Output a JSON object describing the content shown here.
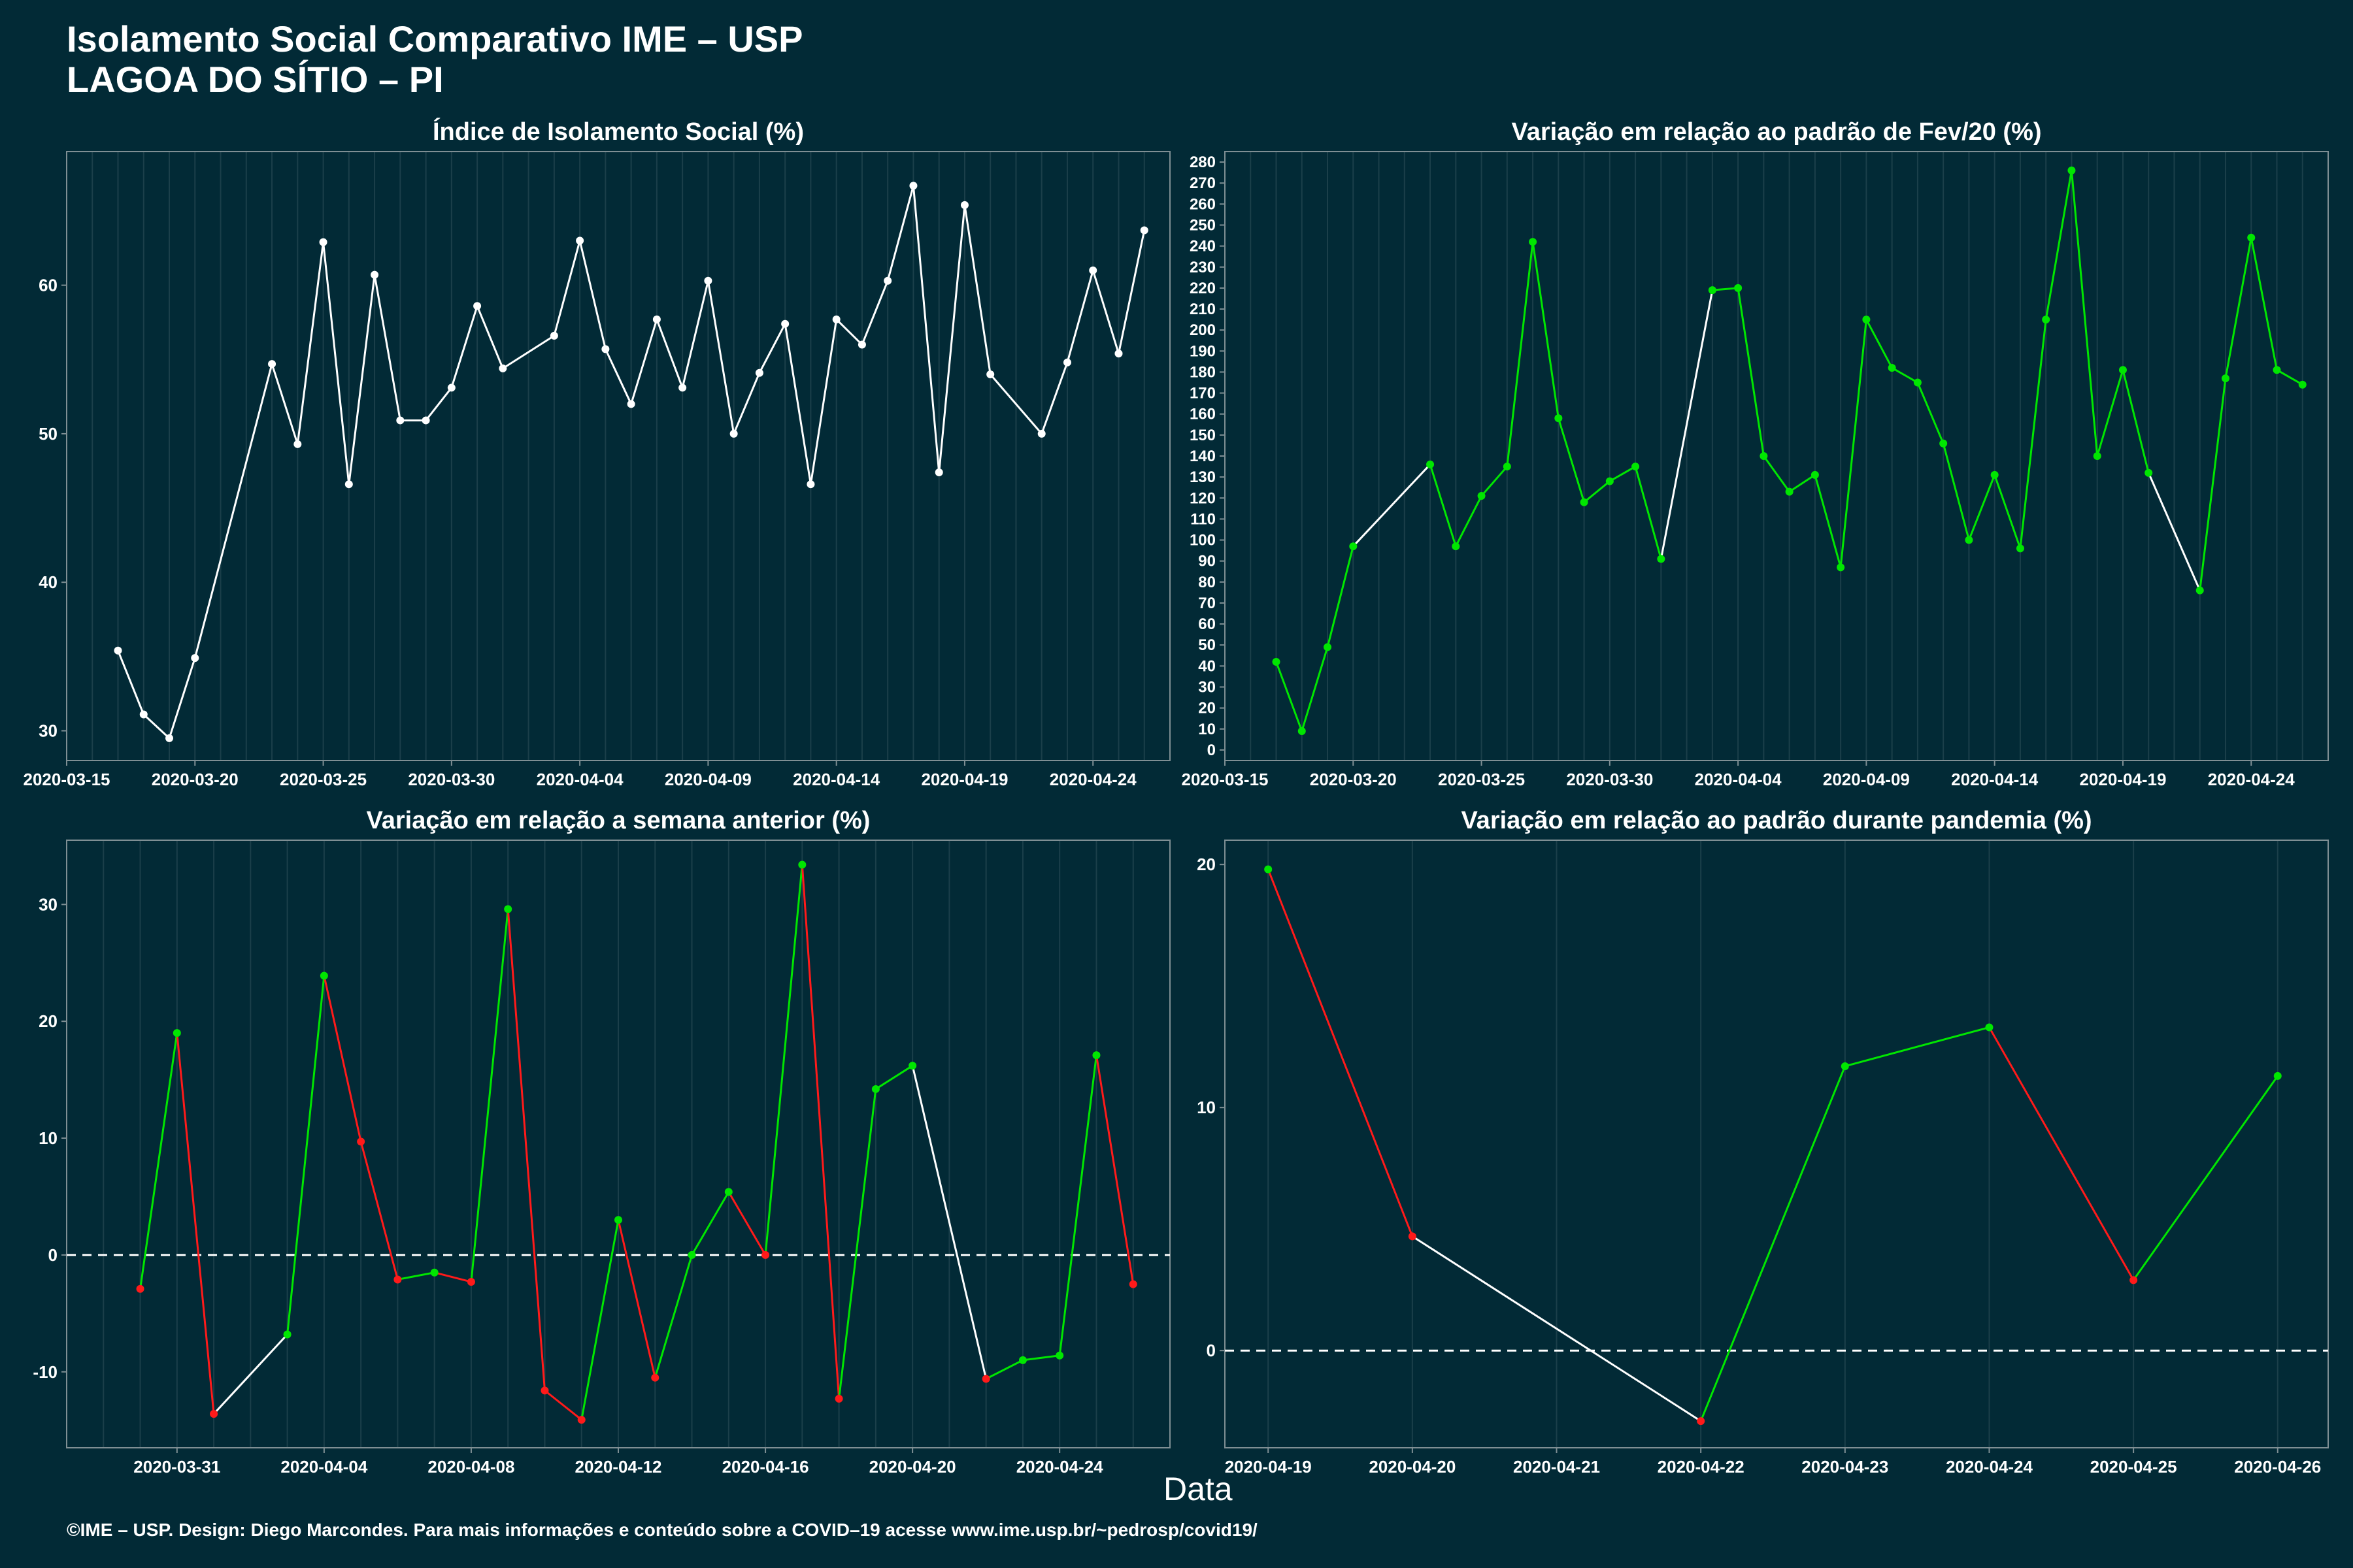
{
  "header": {
    "title_line1": "Isolamento Social Comparativo IME – USP",
    "title_line2": "LAGOA DO SÍTIO – PI"
  },
  "xaxis_label": "Data",
  "footer": "©IME – USP. Design: Diego Marcondes. Para mais informações e conteúdo sobre a COVID–19 acesse www.ime.usp.br/~pedrosp/covid19/",
  "colors": {
    "background": "#022a36",
    "line_default": "#ffffff",
    "positive": "#00e600",
    "negative": "#ff1a1a",
    "grid": "#1b3f4a"
  },
  "chart_data": [
    {
      "type": "line",
      "title": "Índice de Isolamento Social (%)",
      "series_color_rule": "single white",
      "x": [
        "2020-03-17",
        "2020-03-18",
        "2020-03-19",
        "2020-03-20",
        "2020-03-23",
        "2020-03-24",
        "2020-03-25",
        "2020-03-26",
        "2020-03-27",
        "2020-03-28",
        "2020-03-29",
        "2020-03-30",
        "2020-03-31",
        "2020-04-01",
        "2020-04-03",
        "2020-04-04",
        "2020-04-05",
        "2020-04-06",
        "2020-04-07",
        "2020-04-08",
        "2020-04-09",
        "2020-04-10",
        "2020-04-11",
        "2020-04-12",
        "2020-04-13",
        "2020-04-14",
        "2020-04-15",
        "2020-04-16",
        "2020-04-17",
        "2020-04-18",
        "2020-04-19",
        "2020-04-20",
        "2020-04-22",
        "2020-04-23",
        "2020-04-24",
        "2020-04-25",
        "2020-04-26"
      ],
      "y": [
        35.4,
        31.1,
        29.5,
        34.9,
        54.7,
        49.3,
        62.9,
        46.6,
        60.7,
        50.9,
        50.9,
        53.1,
        58.6,
        54.4,
        56.6,
        63.0,
        55.7,
        52.0,
        57.7,
        53.1,
        60.3,
        50.0,
        54.1,
        57.4,
        46.6,
        57.7,
        56.0,
        60.3,
        66.7,
        47.4,
        65.4,
        54.0,
        50.0,
        54.8,
        61.0,
        55.4,
        63.7
      ],
      "xlim": [
        "2020-03-15",
        "2020-04-27"
      ],
      "ylim": [
        28,
        69
      ],
      "xticks": [
        "2020-03-15",
        "2020-03-20",
        "2020-03-25",
        "2020-03-30",
        "2020-04-04",
        "2020-04-09",
        "2020-04-14",
        "2020-04-19",
        "2020-04-24"
      ],
      "yticks": [
        30,
        40,
        50,
        60
      ],
      "zero_line": false
    },
    {
      "type": "line",
      "title": "Variação em relação ao padrão de Fev/20 (%)",
      "series_color_rule": "green when consecutive days, white across gaps",
      "x": [
        "2020-03-17",
        "2020-03-18",
        "2020-03-19",
        "2020-03-20",
        "2020-03-23",
        "2020-03-24",
        "2020-03-25",
        "2020-03-26",
        "2020-03-27",
        "2020-03-28",
        "2020-03-29",
        "2020-03-30",
        "2020-03-31",
        "2020-04-01",
        "2020-04-03",
        "2020-04-04",
        "2020-04-05",
        "2020-04-06",
        "2020-04-07",
        "2020-04-08",
        "2020-04-09",
        "2020-04-10",
        "2020-04-11",
        "2020-04-12",
        "2020-04-13",
        "2020-04-14",
        "2020-04-15",
        "2020-04-16",
        "2020-04-17",
        "2020-04-18",
        "2020-04-19",
        "2020-04-20",
        "2020-04-22",
        "2020-04-23",
        "2020-04-24",
        "2020-04-25",
        "2020-04-26"
      ],
      "y": [
        42,
        9,
        49,
        97,
        136,
        97,
        121,
        135,
        242,
        158,
        118,
        128,
        135,
        91,
        219,
        220,
        140,
        123,
        131,
        87,
        205,
        182,
        175,
        146,
        100,
        131,
        96,
        205,
        276,
        140,
        181,
        132,
        76,
        177,
        244,
        181,
        174
      ],
      "xlim": [
        "2020-03-15",
        "2020-04-27"
      ],
      "ylim": [
        -5,
        285
      ],
      "xticks": [
        "2020-03-15",
        "2020-03-20",
        "2020-03-25",
        "2020-03-30",
        "2020-04-04",
        "2020-04-09",
        "2020-04-14",
        "2020-04-19",
        "2020-04-24"
      ],
      "yticks": [
        0,
        10,
        20,
        30,
        40,
        50,
        60,
        70,
        80,
        90,
        100,
        110,
        120,
        130,
        140,
        150,
        160,
        170,
        180,
        190,
        200,
        210,
        220,
        230,
        240,
        250,
        260,
        270,
        280
      ],
      "zero_line": false
    },
    {
      "type": "line",
      "title": "Variação em relação a semana anterior (%)",
      "series_color_rule": "green rising, red falling, white across gaps",
      "x": [
        "2020-03-30",
        "2020-03-31",
        "2020-04-01",
        "2020-04-03",
        "2020-04-04",
        "2020-04-05",
        "2020-04-06",
        "2020-04-07",
        "2020-04-08",
        "2020-04-09",
        "2020-04-10",
        "2020-04-11",
        "2020-04-12",
        "2020-04-13",
        "2020-04-14",
        "2020-04-15",
        "2020-04-16",
        "2020-04-17",
        "2020-04-18",
        "2020-04-19",
        "2020-04-20",
        "2020-04-22",
        "2020-04-23",
        "2020-04-24",
        "2020-04-25",
        "2020-04-26"
      ],
      "y": [
        -2.9,
        19.0,
        -13.6,
        -6.8,
        23.9,
        9.7,
        -2.1,
        -1.5,
        -2.3,
        29.6,
        -11.6,
        -14.1,
        3.0,
        -10.5,
        0.0,
        5.4,
        0.0,
        33.4,
        -12.3,
        14.2,
        16.2,
        -10.6,
        -9.0,
        -8.6,
        17.1,
        -2.5
      ],
      "xlim": [
        "2020-03-28",
        "2020-04-27"
      ],
      "ylim": [
        -16.5,
        35.5
      ],
      "xticks": [
        "2020-03-31",
        "2020-04-04",
        "2020-04-08",
        "2020-04-12",
        "2020-04-16",
        "2020-04-20",
        "2020-04-24"
      ],
      "yticks": [
        -10,
        0,
        10,
        20,
        30
      ],
      "zero_line": true
    },
    {
      "type": "line",
      "title": "Variação em relação ao padrão durante pandemia (%)",
      "series_color_rule": "green rising, red falling, white across gaps",
      "x": [
        "2020-04-19",
        "2020-04-20",
        "2020-04-22",
        "2020-04-23",
        "2020-04-24",
        "2020-04-25",
        "2020-04-26"
      ],
      "y": [
        19.8,
        4.7,
        -2.9,
        11.7,
        13.3,
        2.9,
        11.3
      ],
      "xlim": [
        "2020-04-18.7",
        "2020-04-26.35"
      ],
      "ylim": [
        -4,
        21
      ],
      "xticks": [
        "2020-04-19",
        "2020-04-20",
        "2020-04-21",
        "2020-04-22",
        "2020-04-23",
        "2020-04-24",
        "2020-04-25",
        "2020-04-26"
      ],
      "yticks": [
        0,
        10,
        20
      ],
      "zero_line": true
    }
  ]
}
